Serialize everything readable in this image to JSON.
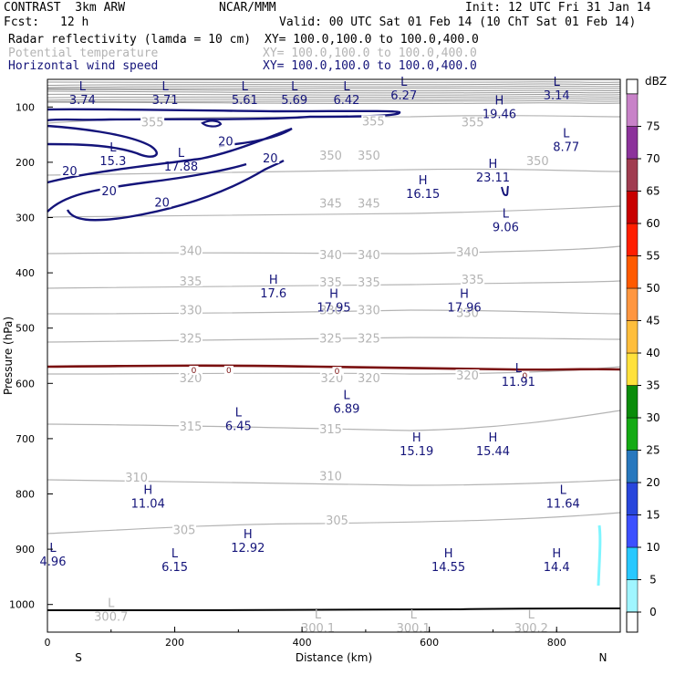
{
  "header": {
    "model": "CONTRAST  3km ARW",
    "source": "NCAR/MMM",
    "init": "Init: 12 UTC Fri 31 Jan 14",
    "fcst_label": "Fcst:",
    "fcst_value": "12 h",
    "valid": "Valid: 00 UTC Sat 01 Feb 14 (10 ChT Sat 01 Feb 14)"
  },
  "fields": [
    {
      "name": "Radar reflectivity (lamda = 10 cm)",
      "xy": "XY= 100.0,100.0 to 100.0,400.0",
      "color": "#000000"
    },
    {
      "name": "Potential temperature",
      "xy": "XY= 100.0,100.0 to 100.0,400.0",
      "color": "#b4b4b4"
    },
    {
      "name": "Horizontal wind speed",
      "xy": "XY= 100.0,100.0 to 100.0,400.0",
      "color": "#14147a"
    }
  ],
  "colors": {
    "theta": "#b4b4b4",
    "wind": "#14147a",
    "freezing": "#7a1010",
    "terrain": "#000000"
  },
  "chart_data": {
    "type": "cross-section",
    "xlabel": "Distance (km)",
    "ylabel": "Pressure (hPa)",
    "xlim": [
      0,
      900
    ],
    "ylim": [
      1050,
      50
    ],
    "x_ticks": [
      "0",
      "200",
      "400",
      "600",
      "800"
    ],
    "x_tick_values": [
      0,
      200,
      400,
      600,
      800
    ],
    "y_ticks": [
      "100",
      "200",
      "300",
      "400",
      "500",
      "600",
      "700",
      "800",
      "900",
      "1000"
    ],
    "y_tick_values": [
      100,
      200,
      300,
      400,
      500,
      600,
      700,
      800,
      900,
      1000
    ],
    "end_labels": {
      "left": "S",
      "right": "N"
    },
    "theta_contour_labels": [
      {
        "text": "355",
        "x": 165,
        "p": 130
      },
      {
        "text": "355",
        "x": 512,
        "p": 128
      },
      {
        "text": "355",
        "x": 668,
        "p": 130
      },
      {
        "text": "350",
        "x": 445,
        "p": 190
      },
      {
        "text": "350",
        "x": 505,
        "p": 190
      },
      {
        "text": "350",
        "x": 770,
        "p": 200
      },
      {
        "text": "345",
        "x": 445,
        "p": 277
      },
      {
        "text": "345",
        "x": 505,
        "p": 277
      },
      {
        "text": "340",
        "x": 225,
        "p": 363
      },
      {
        "text": "340",
        "x": 445,
        "p": 370
      },
      {
        "text": "340",
        "x": 505,
        "p": 370
      },
      {
        "text": "340",
        "x": 660,
        "p": 365
      },
      {
        "text": "335",
        "x": 225,
        "p": 418
      },
      {
        "text": "335",
        "x": 445,
        "p": 420
      },
      {
        "text": "335",
        "x": 505,
        "p": 420
      },
      {
        "text": "335",
        "x": 668,
        "p": 415
      },
      {
        "text": "330",
        "x": 225,
        "p": 470
      },
      {
        "text": "330",
        "x": 445,
        "p": 470
      },
      {
        "text": "330",
        "x": 505,
        "p": 470
      },
      {
        "text": "330",
        "x": 660,
        "p": 475
      },
      {
        "text": "325",
        "x": 225,
        "p": 521
      },
      {
        "text": "325",
        "x": 445,
        "p": 521
      },
      {
        "text": "325",
        "x": 505,
        "p": 521
      },
      {
        "text": "320",
        "x": 225,
        "p": 593
      },
      {
        "text": "320",
        "x": 447,
        "p": 593
      },
      {
        "text": "320",
        "x": 505,
        "p": 593
      },
      {
        "text": "320",
        "x": 660,
        "p": 588
      },
      {
        "text": "315",
        "x": 225,
        "p": 680
      },
      {
        "text": "315",
        "x": 445,
        "p": 685
      },
      {
        "text": "310",
        "x": 140,
        "p": 773
      },
      {
        "text": "310",
        "x": 445,
        "p": 770
      },
      {
        "text": "305",
        "x": 215,
        "p": 868
      },
      {
        "text": "305",
        "x": 455,
        "p": 850
      }
    ],
    "wind_contour_labels": [
      {
        "text": "20",
        "x": 35,
        "p": 218
      },
      {
        "text": "20",
        "x": 97,
        "p": 255
      },
      {
        "text": "20",
        "x": 180,
        "p": 275
      },
      {
        "text": "20",
        "x": 280,
        "p": 165
      },
      {
        "text": "20",
        "x": 350,
        "p": 195
      }
    ],
    "freezing_level_labels": [
      {
        "text": "0",
        "x": 230,
        "p": 578
      },
      {
        "text": "0",
        "x": 285,
        "p": 578
      },
      {
        "text": "0",
        "x": 455,
        "p": 580
      },
      {
        "text": "0",
        "x": 750,
        "p": 588
      }
    ],
    "highs_lows": [
      {
        "type": "L",
        "value": "3.74",
        "x": 55,
        "p": 70,
        "field": "wind"
      },
      {
        "type": "L",
        "value": "3.71",
        "x": 185,
        "p": 70,
        "field": "wind"
      },
      {
        "type": "L",
        "value": "5.61",
        "x": 310,
        "p": 70,
        "field": "wind"
      },
      {
        "type": "L",
        "value": "5.69",
        "x": 388,
        "p": 70,
        "field": "wind"
      },
      {
        "type": "L",
        "value": "6.42",
        "x": 470,
        "p": 70,
        "field": "wind"
      },
      {
        "type": "L",
        "value": "6.27",
        "x": 560,
        "p": 60,
        "field": "wind"
      },
      {
        "type": "L",
        "value": "3.14",
        "x": 800,
        "p": 60,
        "field": "wind"
      },
      {
        "type": "H",
        "value": "19.46",
        "x": 710,
        "p": 95,
        "field": "wind"
      },
      {
        "type": "L",
        "value": "8.77",
        "x": 815,
        "p": 155,
        "field": "wind"
      },
      {
        "type": "L",
        "value": "15.3",
        "x": 103,
        "p": 180,
        "field": "wind"
      },
      {
        "type": "L",
        "value": "17.88",
        "x": 210,
        "p": 190,
        "field": "wind"
      },
      {
        "type": "H",
        "value": "23.11",
        "x": 700,
        "p": 210,
        "field": "wind"
      },
      {
        "type": "H",
        "value": "16.15",
        "x": 590,
        "p": 240,
        "field": "wind"
      },
      {
        "type": "L",
        "value": "9.06",
        "x": 720,
        "p": 300,
        "field": "wind"
      },
      {
        "type": "H",
        "value": "17.6",
        "x": 355,
        "p": 420,
        "field": "wind"
      },
      {
        "type": "H",
        "value": "17.95",
        "x": 450,
        "p": 445,
        "field": "wind"
      },
      {
        "type": "H",
        "value": "17.96",
        "x": 655,
        "p": 445,
        "field": "wind"
      },
      {
        "type": "L",
        "value": "11.91",
        "x": 740,
        "p": 580,
        "field": "wind"
      },
      {
        "type": "L",
        "value": "6.89",
        "x": 470,
        "p": 628,
        "field": "wind"
      },
      {
        "type": "L",
        "value": "6.45",
        "x": 300,
        "p": 660,
        "field": "wind"
      },
      {
        "type": "H",
        "value": "15.19",
        "x": 580,
        "p": 705,
        "field": "wind"
      },
      {
        "type": "H",
        "value": "15.44",
        "x": 700,
        "p": 705,
        "field": "wind"
      },
      {
        "type": "H",
        "value": "11.04",
        "x": 158,
        "p": 800,
        "field": "wind"
      },
      {
        "type": "L",
        "value": "11.64",
        "x": 810,
        "p": 800,
        "field": "wind"
      },
      {
        "type": "L",
        "value": "4.96",
        "x": 2,
        "p": 905,
        "field": "wind"
      },
      {
        "type": "H",
        "value": "12.92",
        "x": 315,
        "p": 880,
        "field": "wind"
      },
      {
        "type": "L",
        "value": "6.15",
        "x": 200,
        "p": 915,
        "field": "wind"
      },
      {
        "type": "H",
        "value": "14.55",
        "x": 630,
        "p": 915,
        "field": "wind"
      },
      {
        "type": "H",
        "value": "14.4",
        "x": 800,
        "p": 915,
        "field": "wind"
      },
      {
        "type": "L",
        "value": "300.7",
        "x": 100,
        "p": 1005,
        "field": "theta"
      },
      {
        "type": "L",
        "value": "300.1",
        "x": 425,
        "p": 1025,
        "field": "theta"
      },
      {
        "type": "L",
        "value": "300.1",
        "x": 575,
        "p": 1025,
        "field": "theta"
      },
      {
        "type": "L",
        "value": "300.2",
        "x": 760,
        "p": 1025,
        "field": "theta"
      }
    ],
    "colorbar": {
      "label": "dBZ",
      "levels": [
        "0",
        "5",
        "10",
        "15",
        "20",
        "25",
        "30",
        "35",
        "40",
        "45",
        "50",
        "55",
        "60",
        "65",
        "70",
        "75"
      ],
      "colors": [
        "#a0f5ff",
        "#28c8ff",
        "#3c50ff",
        "#2846dc",
        "#2878be",
        "#14aa14",
        "#0a8c0a",
        "#ffe13c",
        "#ffbe3c",
        "#ff9640",
        "#ff5a00",
        "#ff1e00",
        "#c80000",
        "#a03c50",
        "#8c329b",
        "#c882c8"
      ]
    }
  }
}
